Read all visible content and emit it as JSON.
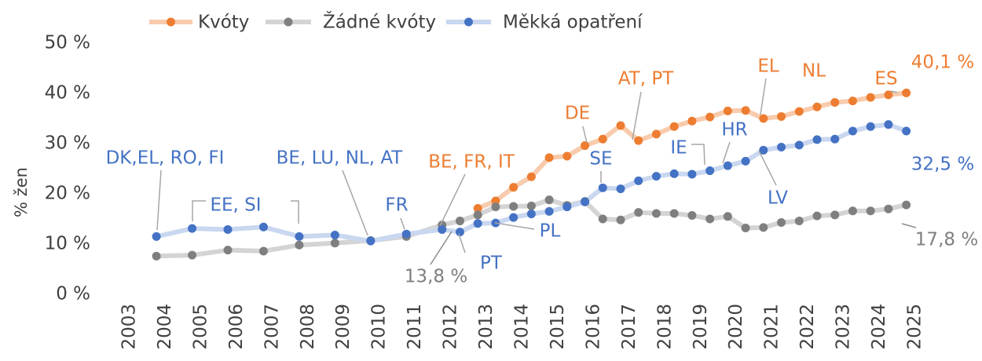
{
  "chart_data": {
    "type": "line",
    "y_label": "% žen",
    "x": [
      2003.75,
      2004.75,
      2005.75,
      2006.75,
      2007.75,
      2008.75,
      2009.75,
      2010.75,
      2011.75,
      2012.25,
      2012.75,
      2013.25,
      2013.75,
      2014.25,
      2014.75,
      2015.25,
      2015.75,
      2016.25,
      2016.75,
      2017.25,
      2017.75,
      2018.25,
      2018.75,
      2019.25,
      2019.75,
      2020.25,
      2020.75,
      2021.25,
      2021.75,
      2022.25,
      2022.75,
      2023.25,
      2023.75,
      2024.25,
      2024.75
    ],
    "series": [
      {
        "name": "Kvóty",
        "color": "#ED7D31",
        "line_color": "#F8CBAD",
        "values": [
          null,
          null,
          null,
          null,
          null,
          null,
          null,
          null,
          null,
          null,
          17.1,
          18.6,
          21.3,
          23.4,
          27.2,
          27.5,
          29.6,
          30.9,
          33.6,
          30.6,
          31.9,
          33.4,
          34.5,
          35.3,
          36.5,
          36.6,
          35.0,
          35.4,
          36.4,
          37.3,
          38.2,
          38.5,
          39.2,
          39.7,
          40.1
        ]
      },
      {
        "name": "Žádné kvóty",
        "color": "#7F7F7F",
        "line_color": "#D4D4D4",
        "values": [
          7.6,
          7.8,
          8.8,
          8.6,
          9.8,
          10.2,
          10.7,
          11.5,
          13.8,
          14.6,
          15.8,
          17.4,
          17.5,
          17.6,
          18.8,
          17.7,
          18.5,
          15.0,
          14.8,
          16.3,
          16.1,
          16.1,
          15.7,
          15.0,
          15.5,
          13.2,
          13.3,
          14.3,
          14.6,
          15.6,
          15.8,
          16.6,
          16.6,
          17.0,
          17.8
        ]
      },
      {
        "name": "Měkká opatření",
        "color": "#4472C4",
        "line_color": "#C9D7F0",
        "values": [
          11.5,
          13.1,
          12.9,
          13.4,
          11.5,
          11.8,
          10.6,
          12.0,
          12.9,
          12.4,
          14.1,
          14.2,
          15.3,
          16.0,
          16.5,
          17.4,
          18.4,
          21.2,
          21.0,
          22.6,
          23.5,
          24.0,
          23.9,
          24.6,
          25.6,
          26.5,
          28.7,
          29.3,
          29.7,
          30.8,
          30.9,
          32.5,
          33.4,
          33.8,
          32.5
        ]
      }
    ],
    "annotations": [
      {
        "text": "DK,EL, RO, FI",
        "series": 2
      },
      {
        "text": "EE, SI",
        "series": 2
      },
      {
        "text": "BE, LU, NL, AT",
        "series": 2
      },
      {
        "text": "FR",
        "series": 2
      },
      {
        "text": "BE, FR, IT",
        "series": 0
      },
      {
        "text": "DE",
        "series": 0
      },
      {
        "text": "AT, PT",
        "series": 0
      },
      {
        "text": "EL",
        "series": 0
      },
      {
        "text": "NL",
        "series": 0
      },
      {
        "text": "ES",
        "series": 0
      },
      {
        "text": "40,1 %",
        "series": 0
      },
      {
        "text": "SE",
        "series": 2
      },
      {
        "text": "IE",
        "series": 2
      },
      {
        "text": "HR",
        "series": 2
      },
      {
        "text": "LV",
        "series": 2
      },
      {
        "text": "32,5 %",
        "series": 2
      },
      {
        "text": "PL",
        "series": 2
      },
      {
        "text": "PT",
        "series": 2
      },
      {
        "text": "13,8 %",
        "series": 1
      },
      {
        "text": "17,8 %",
        "series": 1
      }
    ],
    "xlim": [
      2003,
      2025
    ],
    "xticks": [
      2003,
      2004,
      2005,
      2006,
      2007,
      2008,
      2009,
      2010,
      2011,
      2012,
      2013,
      2014,
      2015,
      2016,
      2017,
      2018,
      2019,
      2020,
      2021,
      2022,
      2023,
      2024,
      2025
    ],
    "ylim": [
      0,
      50
    ],
    "yticks": [
      {
        "value": 0,
        "label": "0 %"
      },
      {
        "value": 10,
        "label": "10 %"
      },
      {
        "value": 20,
        "label": "20 %"
      },
      {
        "value": 30,
        "label": "30 %"
      },
      {
        "value": 40,
        "label": "40 %"
      },
      {
        "value": 50,
        "label": "50 %"
      }
    ],
    "legend": "top"
  }
}
